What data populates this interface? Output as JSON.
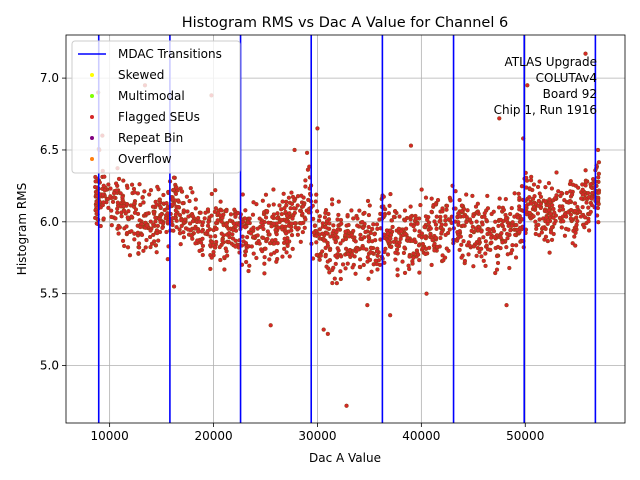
{
  "chart_data": {
    "type": "scatter",
    "title": "Histogram RMS vs Dac A Value for Channel 6",
    "xlabel": "Dac A Value",
    "ylabel": "Histogram RMS",
    "xlim": [
      5800,
      59600
    ],
    "ylim": [
      4.6,
      7.3
    ],
    "xticks": [
      10000,
      20000,
      30000,
      40000,
      50000
    ],
    "xtick_labels": [
      "10000",
      "20000",
      "30000",
      "40000",
      "50000"
    ],
    "yticks": [
      5.0,
      5.5,
      6.0,
      6.5,
      7.0
    ],
    "ytick_labels": [
      "5.0",
      "5.5",
      "6.0",
      "6.5",
      "7.0"
    ],
    "grid": true,
    "legend_position": "upper-left",
    "legend": [
      {
        "label": "MDAC Transitions",
        "kind": "line",
        "color": "#0000ff"
      },
      {
        "label": "Skewed",
        "kind": "marker",
        "color": "#ffff00"
      },
      {
        "label": "Multimodal",
        "kind": "marker",
        "color": "#7fff00"
      },
      {
        "label": "Flagged SEUs",
        "kind": "marker",
        "color": "#d62728"
      },
      {
        "label": "Repeat Bin",
        "kind": "marker",
        "color": "#800080"
      },
      {
        "label": "Overflow",
        "kind": "marker",
        "color": "#ff7f0e"
      }
    ],
    "annotation": [
      "ATLAS Upgrade",
      "COLUTAv4",
      "Board 92",
      "Chip 1, Run 1916"
    ],
    "mdac_transitions": [
      8950,
      15800,
      22600,
      29400,
      36250,
      43100,
      49900,
      56750
    ],
    "point_color": "#d62728",
    "point_edge": "#8b4513",
    "series": [
      {
        "name": "Flagged SEUs",
        "segments": [
          {
            "x0": 8600,
            "x1": 8950,
            "y_mid": 6.15,
            "y_spread": 0.18,
            "n": 45
          },
          {
            "x0": 8950,
            "x1": 15800,
            "y_start": 6.15,
            "y_end": 5.92,
            "y_spread": 0.2,
            "n": 230
          },
          {
            "x0": 15800,
            "x1": 22600,
            "y_start": 6.05,
            "y_end": 5.88,
            "y_spread": 0.18,
            "n": 230
          },
          {
            "x0": 22600,
            "x1": 29400,
            "y_start": 5.85,
            "y_end": 6.05,
            "y_spread": 0.2,
            "n": 230
          },
          {
            "x0": 29400,
            "x1": 36250,
            "y_start": 5.9,
            "y_end": 5.8,
            "y_spread": 0.22,
            "n": 230
          },
          {
            "x0": 36250,
            "x1": 43100,
            "y_start": 5.85,
            "y_end": 5.95,
            "y_spread": 0.22,
            "n": 230
          },
          {
            "x0": 43100,
            "x1": 49900,
            "y_start": 5.9,
            "y_end": 5.95,
            "y_spread": 0.2,
            "n": 230
          },
          {
            "x0": 49900,
            "x1": 56750,
            "y_start": 6.05,
            "y_end": 6.1,
            "y_spread": 0.18,
            "n": 230
          },
          {
            "x0": 56750,
            "x1": 57100,
            "y_mid": 6.2,
            "y_spread": 0.2,
            "n": 30
          }
        ]
      },
      {
        "name": "Outliers",
        "points": [
          [
            8900,
            6.9
          ],
          [
            9300,
            6.6
          ],
          [
            13400,
            6.95
          ],
          [
            16200,
            5.55
          ],
          [
            19800,
            6.88
          ],
          [
            25500,
            5.28
          ],
          [
            27800,
            6.5
          ],
          [
            29000,
            6.48
          ],
          [
            30000,
            6.65
          ],
          [
            30600,
            5.25
          ],
          [
            31000,
            5.22
          ],
          [
            32800,
            4.72
          ],
          [
            34800,
            5.42
          ],
          [
            37000,
            5.35
          ],
          [
            39000,
            6.53
          ],
          [
            40500,
            5.5
          ],
          [
            47500,
            6.72
          ],
          [
            48200,
            5.42
          ],
          [
            49800,
            6.58
          ],
          [
            50200,
            6.95
          ],
          [
            55800,
            7.17
          ],
          [
            57000,
            6.5
          ]
        ]
      }
    ]
  }
}
